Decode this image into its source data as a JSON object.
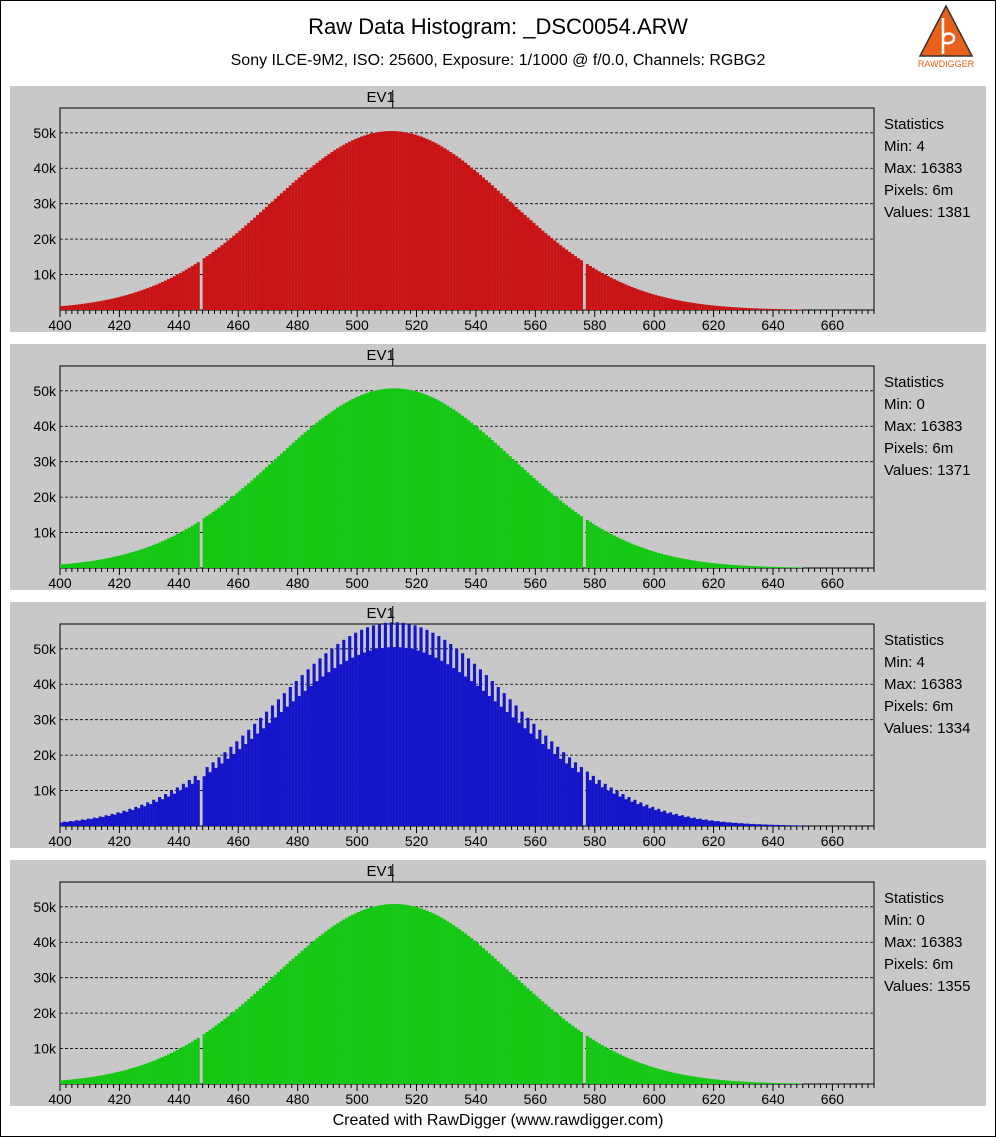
{
  "title": "Raw Data Histogram: _DSC0054.ARW",
  "subtitle": "Sony ILCE-9M2, ISO: 25600, Exposure: 1/1000 @ f/0.0, Channels: RGBG2",
  "subtitle2": "",
  "logo_text": "RAWDIGGER",
  "footer": "Created with RawDigger (www.rawdigger.com)",
  "colors": {
    "red": "#c81414",
    "green": "#14c814",
    "blue": "#1414c8",
    "panel_bg": "#c8c8c8"
  },
  "channels": [
    {
      "marker": "EV1",
      "stats_title": "Statistics",
      "min": "Min: 4",
      "max": "Max: 16383",
      "pixels": "Pixels: 6m",
      "values": "Values: 1381"
    },
    {
      "marker": "EV1",
      "stats_title": "Statistics",
      "min": "Min: 0",
      "max": "Max: 16383",
      "pixels": "Pixels: 6m",
      "values": "Values: 1371"
    },
    {
      "marker": "EV1",
      "stats_title": "Statistics",
      "min": "Min: 4",
      "max": "Max: 16383",
      "pixels": "Pixels: 6m",
      "values": "Values: 1334"
    },
    {
      "marker": "EV1",
      "stats_title": "Statistics",
      "min": "Min: 0",
      "max": "Max: 16383",
      "pixels": "Pixels: 6m",
      "values": "Values: 1355"
    }
  ],
  "chart_data": [
    {
      "type": "bar",
      "series_color": "#c81414",
      "x_range": [
        400,
        674
      ],
      "ylim": [
        0,
        57000
      ],
      "x_ticks": [
        400,
        420,
        440,
        460,
        480,
        500,
        520,
        540,
        560,
        580,
        600,
        620,
        640,
        660
      ],
      "y_ticks": [
        10000,
        20000,
        30000,
        40000,
        50000
      ],
      "y_tick_labels": [
        "10k",
        "20k",
        "30k",
        "40k",
        "50k"
      ],
      "ev_marker_x": 512,
      "gaps_x": [
        447,
        576
      ],
      "peak_x": 511,
      "peak_value": 50500,
      "sigma": 40,
      "data_end_x": 650,
      "odd_peak_value": 50500
    },
    {
      "type": "bar",
      "series_color": "#14c814",
      "x_range": [
        400,
        674
      ],
      "ylim": [
        0,
        57000
      ],
      "x_ticks": [
        400,
        420,
        440,
        460,
        480,
        500,
        520,
        540,
        560,
        580,
        600,
        620,
        640,
        660
      ],
      "y_ticks": [
        10000,
        20000,
        30000,
        40000,
        50000
      ],
      "y_tick_labels": [
        "10k",
        "20k",
        "30k",
        "40k",
        "50k"
      ],
      "ev_marker_x": 512,
      "gaps_x": [
        447,
        576
      ],
      "peak_x": 512,
      "peak_value": 50700,
      "sigma": 40,
      "data_end_x": 650,
      "odd_peak_value": 50700
    },
    {
      "type": "bar",
      "series_color": "#1414c8",
      "x_range": [
        400,
        674
      ],
      "ylim": [
        0,
        57000
      ],
      "x_ticks": [
        400,
        420,
        440,
        460,
        480,
        500,
        520,
        540,
        560,
        580,
        600,
        620,
        640,
        660
      ],
      "y_ticks": [
        10000,
        20000,
        30000,
        40000,
        50000
      ],
      "y_tick_labels": [
        "10k",
        "20k",
        "30k",
        "40k",
        "50k"
      ],
      "ev_marker_x": 512,
      "gaps_x": [
        447,
        576
      ],
      "peak_x": 512,
      "peak_value": 50500,
      "sigma": 40,
      "data_end_x": 650,
      "odd_peak_value": 57500
    },
    {
      "type": "bar",
      "series_color": "#14c814",
      "x_range": [
        400,
        674
      ],
      "ylim": [
        0,
        57000
      ],
      "x_ticks": [
        400,
        420,
        440,
        460,
        480,
        500,
        520,
        540,
        560,
        580,
        600,
        620,
        640,
        660
      ],
      "y_ticks": [
        10000,
        20000,
        30000,
        40000,
        50000
      ],
      "y_tick_labels": [
        "10k",
        "20k",
        "30k",
        "40k",
        "50k"
      ],
      "ev_marker_x": 512,
      "gaps_x": [
        447,
        576
      ],
      "peak_x": 512,
      "peak_value": 50800,
      "sigma": 40,
      "data_end_x": 650,
      "odd_peak_value": 50800
    }
  ]
}
